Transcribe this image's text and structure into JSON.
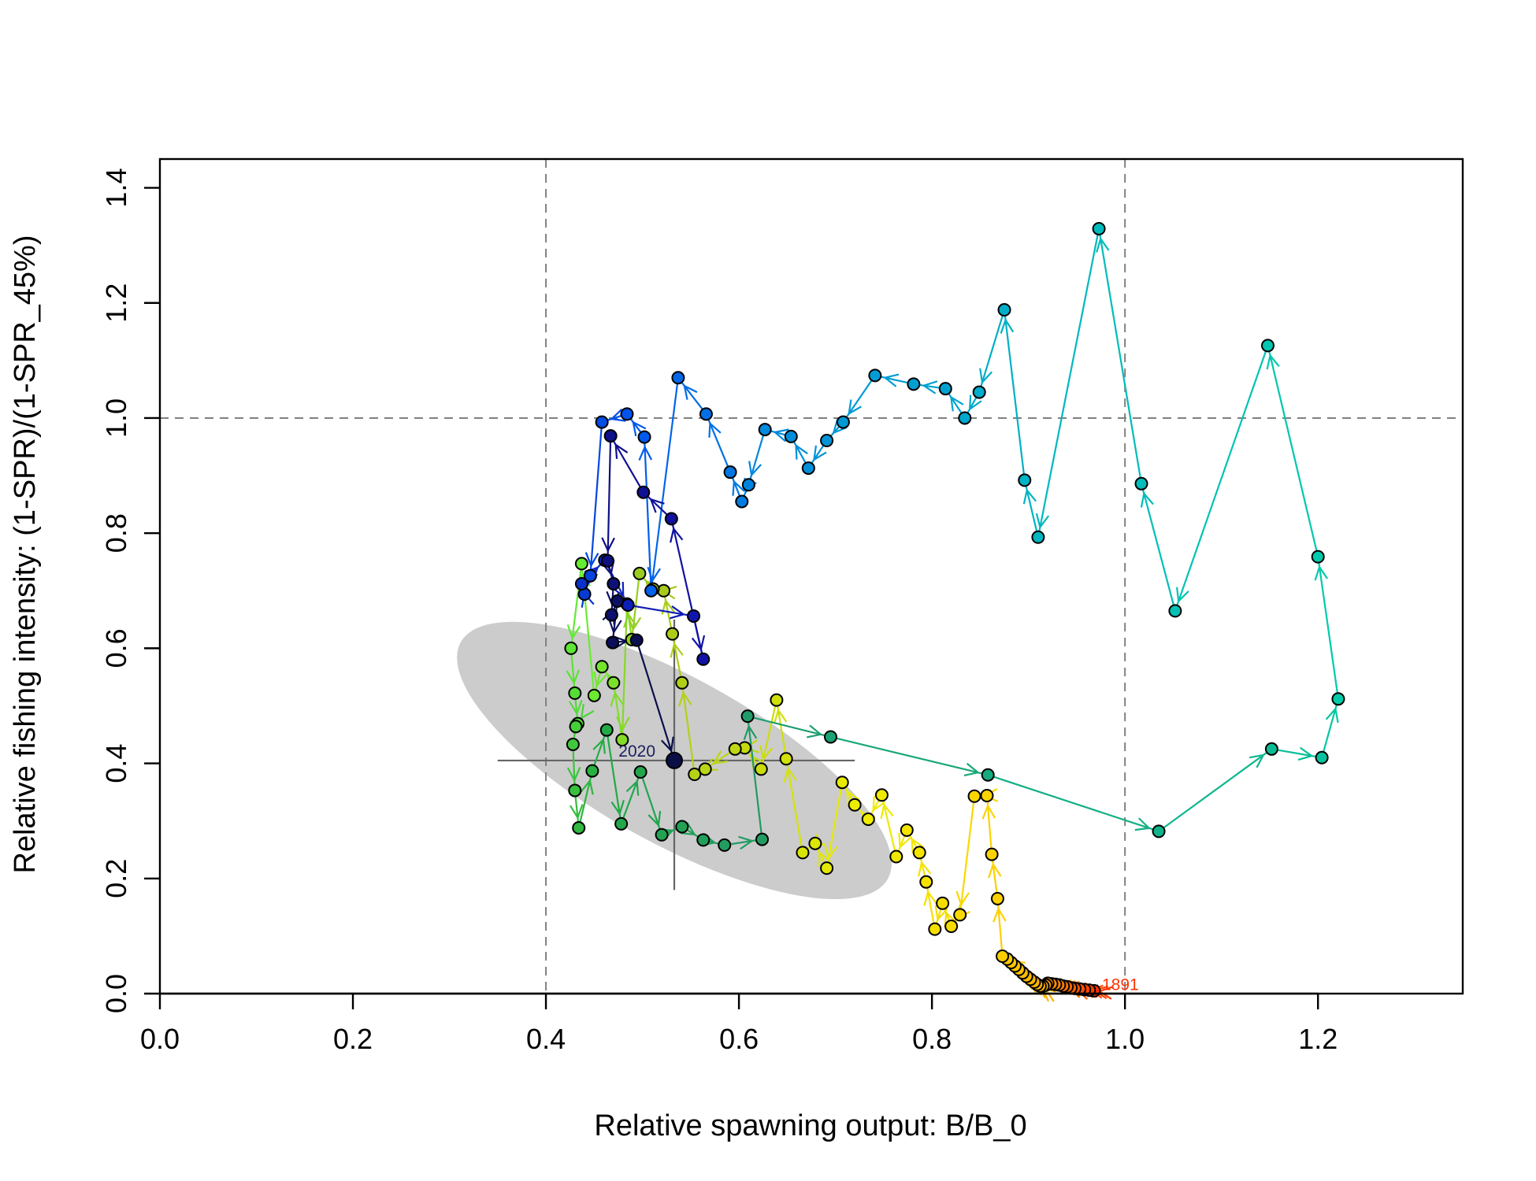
{
  "chart_data": {
    "type": "scatter",
    "xlabel": "Relative spawning output: B/B_0",
    "ylabel": "Relative fishing intensity: (1-SPR)/(1-SPR_45%)",
    "xlim": [
      0,
      1.35
    ],
    "ylim": [
      0,
      1.45
    ],
    "x_ticks": [
      "0.0",
      "0.2",
      "0.4",
      "0.6",
      "0.8",
      "1.0",
      "1.2"
    ],
    "y_ticks": [
      "0.0",
      "0.2",
      "0.4",
      "0.6",
      "0.8",
      "1.0",
      "1.2",
      "1.4"
    ],
    "reference_lines": {
      "vertical": [
        0.4,
        1.0
      ],
      "horizontal": [
        1.0
      ],
      "style": "dashed",
      "color": "#808080"
    },
    "uncertainty_ellipse": {
      "center": [
        0.533,
        0.405
      ],
      "color": "#cccccc"
    },
    "crosshair": {
      "x_range": [
        0.35,
        0.72
      ],
      "y_range": [
        0.18,
        0.65
      ],
      "color": "#666666"
    },
    "year_labels": [
      {
        "text": "1891",
        "color": "#ff3300",
        "year_index": 0
      },
      {
        "text": "2020",
        "color": "#1b1f5c",
        "year_index": 129
      }
    ],
    "trajectory": {
      "start_year": 1891,
      "end_year": 2020,
      "x": [
        0.968,
        0.963,
        0.958,
        0.953,
        0.948,
        0.944,
        0.94,
        0.936,
        0.932,
        0.928,
        0.924,
        0.92,
        0.918,
        0.915,
        0.912,
        0.909,
        0.906,
        0.902,
        0.898,
        0.894,
        0.89,
        0.886,
        0.882,
        0.878,
        0.873,
        0.868,
        0.862,
        0.857,
        0.844,
        0.829,
        0.82,
        0.811,
        0.803,
        0.794,
        0.787,
        0.774,
        0.763,
        0.748,
        0.734,
        0.72,
        0.707,
        0.691,
        0.679,
        0.666,
        0.649,
        0.639,
        0.623,
        0.606,
        0.596,
        0.565,
        0.554,
        0.541,
        0.531,
        0.522,
        0.511,
        0.497,
        0.489,
        0.484,
        0.479,
        0.47,
        0.458,
        0.45,
        0.437,
        0.426,
        0.43,
        0.433,
        0.431,
        0.428,
        0.43,
        0.434,
        0.448,
        0.463,
        0.478,
        0.498,
        0.52,
        0.541,
        0.563,
        0.585,
        0.624,
        0.609,
        0.695,
        0.858,
        1.035,
        1.152,
        1.204,
        1.221,
        1.2,
        1.148,
        1.052,
        1.017,
        0.973,
        0.91,
        0.896,
        0.875,
        0.849,
        0.834,
        0.814,
        0.781,
        0.741,
        0.708,
        0.691,
        0.672,
        0.654,
        0.627,
        0.61,
        0.603,
        0.591,
        0.566,
        0.537,
        0.509,
        0.502,
        0.484,
        0.458,
        0.446,
        0.44,
        0.437,
        0.461,
        0.485,
        0.553,
        0.563,
        0.53,
        0.501,
        0.467,
        0.464,
        0.47,
        0.468,
        0.474,
        0.469,
        0.494,
        0.533
      ],
      "y": [
        0.005,
        0.006,
        0.007,
        0.008,
        0.009,
        0.01,
        0.012,
        0.013,
        0.015,
        0.016,
        0.017,
        0.018,
        0.015,
        0.013,
        0.013,
        0.016,
        0.02,
        0.025,
        0.03,
        0.036,
        0.042,
        0.048,
        0.054,
        0.06,
        0.065,
        0.165,
        0.242,
        0.344,
        0.343,
        0.137,
        0.117,
        0.157,
        0.112,
        0.194,
        0.245,
        0.284,
        0.238,
        0.345,
        0.303,
        0.328,
        0.367,
        0.218,
        0.261,
        0.245,
        0.408,
        0.51,
        0.39,
        0.427,
        0.425,
        0.39,
        0.381,
        0.54,
        0.625,
        0.7,
        0.703,
        0.73,
        0.615,
        0.677,
        0.441,
        0.54,
        0.568,
        0.518,
        0.747,
        0.6,
        0.522,
        0.469,
        0.464,
        0.433,
        0.353,
        0.288,
        0.387,
        0.458,
        0.295,
        0.385,
        0.276,
        0.29,
        0.267,
        0.258,
        0.268,
        0.482,
        0.446,
        0.38,
        0.282,
        0.425,
        0.41,
        0.512,
        0.759,
        1.126,
        0.665,
        0.886,
        1.329,
        0.793,
        0.892,
        1.188,
        1.045,
        1.0,
        1.051,
        1.059,
        1.074,
        0.993,
        0.961,
        0.913,
        0.968,
        0.98,
        0.884,
        0.855,
        0.906,
        1.007,
        1.07,
        0.7,
        0.967,
        1.007,
        0.993,
        0.726,
        0.694,
        0.712,
        0.753,
        0.675,
        0.656,
        0.581,
        0.825,
        0.871,
        0.969,
        0.752,
        0.712,
        0.658,
        0.682,
        0.61,
        0.614,
        0.405
      ]
    }
  }
}
